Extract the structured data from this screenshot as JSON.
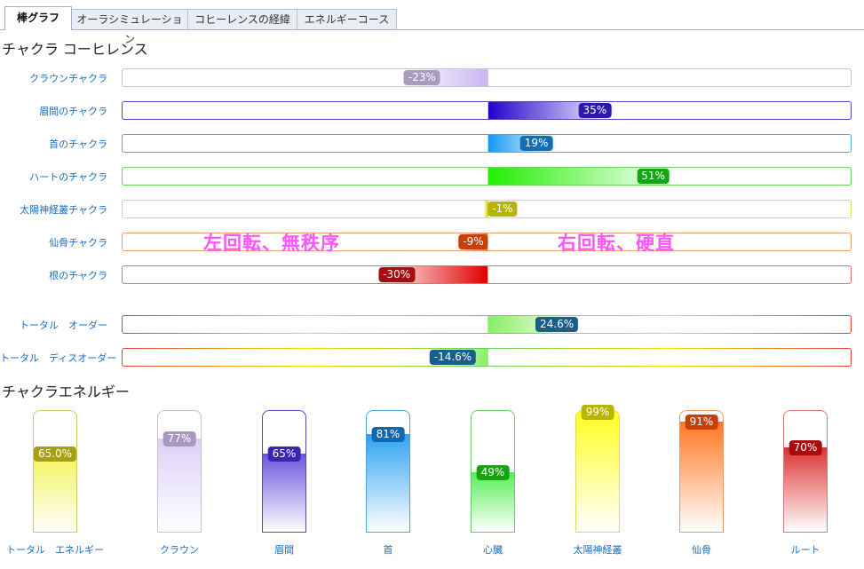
{
  "tabs": [
    {
      "label": "棒グラフ",
      "active": true
    },
    {
      "label": "オーラシミュレーション",
      "active": false
    },
    {
      "label": "コヒーレンスの経緯",
      "active": false
    },
    {
      "label": "エネルギーコース",
      "active": false
    }
  ],
  "coherence": {
    "title": "チャクラ コーヒレンス",
    "rows": [
      {
        "label": "クラウンチャクラ",
        "value": -23,
        "text": "-23%",
        "color": "#c9b6f2",
        "badge": "#a89cc0",
        "border": "#c7c0de"
      },
      {
        "label": "眉間のチャクラ",
        "value": 35,
        "text": "35%",
        "color": "#2200cc",
        "badge": "#2a1aa8",
        "border": "#5546b8"
      },
      {
        "label": "首のチャクラ",
        "value": 19,
        "text": "19%",
        "color": "#1296f5",
        "badge": "#0f6fb8",
        "border": "#58a8e0"
      },
      {
        "label": "ハートのチャクラ",
        "value": 51,
        "text": "51%",
        "color": "#22ee00",
        "badge": "#16a314",
        "border": "#6ad35a"
      },
      {
        "label": "太陽神経叢チャクラ",
        "value": -1,
        "text": "-1%",
        "color": "#d8d800",
        "badge": "#b8b400",
        "border": "#dede66"
      },
      {
        "label": "仙骨チャクラ",
        "value": -9,
        "text": "-9%",
        "color": "#ff6a10",
        "badge": "#c4420a",
        "border": "#f0a070"
      },
      {
        "label": "根のチャクラ",
        "value": -30,
        "text": "-30%",
        "color": "#e00000",
        "badge": "#a80c0c",
        "border": "#e07070"
      }
    ],
    "total_order": {
      "label": "トータル　オーダー",
      "value": 24.6,
      "text": "24.6%",
      "color": "#88ee66",
      "badge": "#1a5e8a"
    },
    "total_disorder": {
      "label": "トータル　ディスオーダー",
      "value": -14.6,
      "text": "-14.6%",
      "color": "#88ee66",
      "badge": "#1a5e8a"
    },
    "overlay_left": "左回転、無秩序",
    "overlay_right": "右回転、硬直"
  },
  "energy": {
    "title": "チャクラエネルギー",
    "columns": [
      {
        "label": "トータル　エネルギー",
        "value": 65.0,
        "text": "65.0%",
        "color": "#f2f25a",
        "badge": "#a8a010",
        "border": "#cccc66"
      },
      {
        "label": "クラウン",
        "value": 77,
        "text": "77%",
        "color": "#dcd0f7",
        "badge": "#a898c0",
        "border": "#c8c0d8"
      },
      {
        "label": "眉間",
        "value": 65,
        "text": "65%",
        "color": "#6a55dd",
        "badge": "#3a26b0",
        "border": "#5a4ab8"
      },
      {
        "label": "首",
        "value": 81,
        "text": "81%",
        "color": "#2ea2f2",
        "badge": "#1168b0",
        "border": "#4aa4e0"
      },
      {
        "label": "心臓",
        "value": 49,
        "text": "49%",
        "color": "#55ee55",
        "badge": "#16a314",
        "border": "#66cc66"
      },
      {
        "label": "太陽神経叢",
        "value": 99,
        "text": "99%",
        "color": "#ffff22",
        "badge": "#b8b400",
        "border": "#dddd55"
      },
      {
        "label": "仙骨",
        "value": 91,
        "text": "91%",
        "color": "#ff7722",
        "badge": "#c4420a",
        "border": "#ee9966"
      },
      {
        "label": "ルート",
        "value": 70,
        "text": "70%",
        "color": "#dd3333",
        "badge": "#a80c0c",
        "border": "#dd7777"
      }
    ]
  }
}
